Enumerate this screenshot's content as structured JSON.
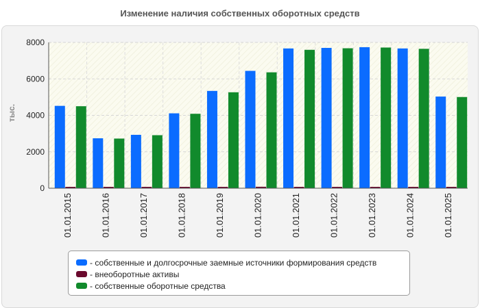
{
  "page": {
    "title": "Изменение наличия собственных оборотных средств"
  },
  "chart_data": {
    "type": "bar",
    "title": "Изменение наличия собственных оборотных средств",
    "ylabel": "тыс.",
    "xlabel": "",
    "ylim": [
      0,
      8000
    ],
    "yticks": [
      0,
      2000,
      4000,
      6000,
      8000
    ],
    "grid": true,
    "legend_position": "bottom",
    "categories": [
      "01.01.2015",
      "01.01.2016",
      "01.01.2017",
      "01.01.2018",
      "01.01.2019",
      "01.01.2020",
      "01.01.2021",
      "01.01.2022",
      "01.01.2023",
      "01.01.2024",
      "01.01.2025"
    ],
    "series": [
      {
        "name": "- собственные и долгосрочные заемные источники формирования средств",
        "color": "#0b6cff",
        "values": [
          4520,
          2740,
          2930,
          4110,
          5340,
          6440,
          7670,
          7700,
          7740,
          7670,
          5030
        ]
      },
      {
        "name": "- внеоборотные активы",
        "color": "#6b0a2e",
        "values": [
          20,
          15,
          20,
          25,
          75,
          80,
          75,
          20,
          20,
          20,
          25
        ]
      },
      {
        "name": "- собственные оборотные средства",
        "color": "#118a2c",
        "values": [
          4500,
          2725,
          2910,
          4085,
          5265,
          6360,
          7595,
          7680,
          7720,
          7650,
          5005
        ]
      }
    ]
  }
}
